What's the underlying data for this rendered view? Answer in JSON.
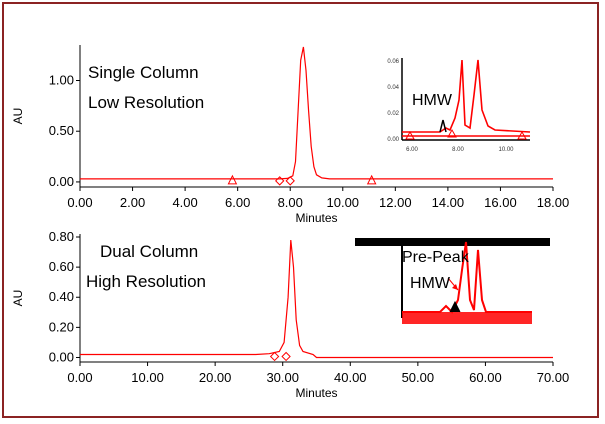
{
  "colors": {
    "frame": "#8b2323",
    "trace": "#ff0000",
    "axis": "#000000",
    "inset_bar": "#000000"
  },
  "chart_data": [
    {
      "type": "line",
      "title": "",
      "annotations": [
        "Single Column",
        "Low Resolution"
      ],
      "xlabel": "Minutes",
      "ylabel": "AU",
      "xlim": [
        0,
        18
      ],
      "ylim": [
        -0.05,
        1.35
      ],
      "xticks": [
        "0.00",
        "2.00",
        "4.00",
        "6.00",
        "8.00",
        "10.00",
        "12.00",
        "14.00",
        "16.00",
        "18.00"
      ],
      "xtick_values": [
        0,
        2,
        4,
        6,
        8,
        10,
        12,
        14,
        16,
        18
      ],
      "yticks": [
        "0.00",
        "0.50",
        "1.00"
      ],
      "ytick_values": [
        0,
        0.5,
        1.0
      ],
      "series": [
        {
          "x": [
            0,
            7.6,
            7.9,
            8.1,
            8.2,
            8.3,
            8.4,
            8.5,
            8.6,
            8.7,
            8.8,
            8.9,
            9.0,
            9.2,
            9.5,
            18
          ],
          "y": [
            0.03,
            0.03,
            0.035,
            0.06,
            0.2,
            0.7,
            1.2,
            1.33,
            1.1,
            0.7,
            0.35,
            0.15,
            0.07,
            0.04,
            0.03,
            0.03
          ]
        }
      ],
      "markers": [
        {
          "shape": "triangle",
          "x": 5.8
        },
        {
          "shape": "diamond",
          "x": 7.6
        },
        {
          "shape": "diamond",
          "x": 8.0
        },
        {
          "shape": "triangle",
          "x": 11.1
        }
      ],
      "inset": {
        "label": "HMW",
        "xticks": [
          "6.00",
          "8.00",
          "10.00"
        ],
        "yticks": [
          "0.06",
          "0.04",
          "0.02",
          "0.00"
        ]
      }
    },
    {
      "type": "line",
      "title": "",
      "annotations": [
        "Dual Column",
        "High Resolution"
      ],
      "xlabel": "Minutes",
      "ylabel": "AU",
      "xlim": [
        0,
        70
      ],
      "ylim": [
        -0.03,
        0.82
      ],
      "xticks": [
        "0.00",
        "10.00",
        "20.00",
        "30.00",
        "40.00",
        "50.00",
        "60.00",
        "70.00"
      ],
      "xtick_values": [
        0,
        10,
        20,
        30,
        40,
        50,
        60,
        70
      ],
      "yticks": [
        "0.00",
        "0.20",
        "0.40",
        "0.60",
        "0.80"
      ],
      "ytick_values": [
        0,
        0.2,
        0.4,
        0.6,
        0.8
      ],
      "series": [
        {
          "x": [
            0,
            26,
            28,
            29.5,
            30.2,
            30.8,
            31.2,
            31.6,
            32.0,
            32.5,
            33.0,
            34.5,
            35,
            70
          ],
          "y": [
            0.02,
            0.02,
            0.025,
            0.04,
            0.1,
            0.4,
            0.78,
            0.6,
            0.25,
            0.08,
            0.04,
            0.02,
            0.0,
            0.0
          ]
        }
      ],
      "markers": [
        {
          "shape": "diamond",
          "x": 28.8
        },
        {
          "shape": "diamond",
          "x": 30.5
        }
      ],
      "inset": {
        "label_top": "Pre-Peak",
        "label": "HMW"
      }
    }
  ]
}
